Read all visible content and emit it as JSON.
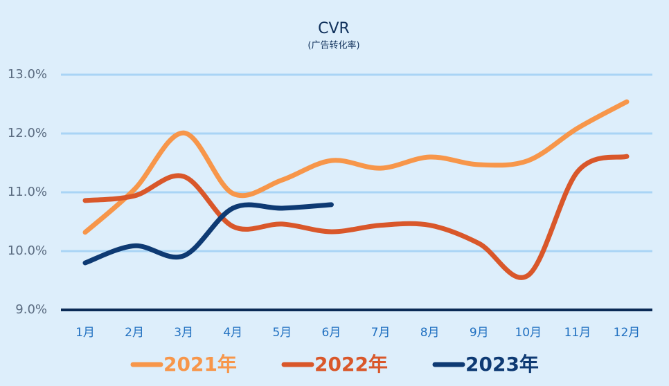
{
  "chart_data": {
    "type": "line",
    "title": "CVR",
    "subtitle": "(广告转化率)",
    "categories": [
      "1月",
      "2月",
      "3月",
      "4月",
      "5月",
      "6月",
      "7月",
      "8月",
      "9月",
      "10月",
      "11月",
      "12月"
    ],
    "series": [
      {
        "name": "2021年",
        "color": "#f7964a",
        "values": [
          10.32,
          11.05,
          12.01,
          10.98,
          11.21,
          11.54,
          11.41,
          11.6,
          11.47,
          11.54,
          12.09,
          12.54
        ]
      },
      {
        "name": "2022年",
        "color": "#d9572a",
        "values": [
          10.86,
          10.94,
          11.27,
          10.42,
          10.46,
          10.33,
          10.44,
          10.44,
          10.13,
          9.59,
          11.35,
          11.61
        ]
      },
      {
        "name": "2023年",
        "color": "#0e3a73",
        "values": [
          9.8,
          10.09,
          9.92,
          10.73,
          10.73,
          10.79,
          null,
          null,
          null,
          null,
          null,
          null
        ]
      }
    ],
    "ylim": [
      9,
      13
    ],
    "yticks": [
      {
        "value": 9,
        "label": "9.0%"
      },
      {
        "value": 10,
        "label": "10.0%"
      },
      {
        "value": 11,
        "label": "11.0%"
      },
      {
        "value": 12,
        "label": "12.0%"
      },
      {
        "value": 13,
        "label": "13.0%"
      }
    ],
    "grid": true,
    "legend": "bottom"
  }
}
